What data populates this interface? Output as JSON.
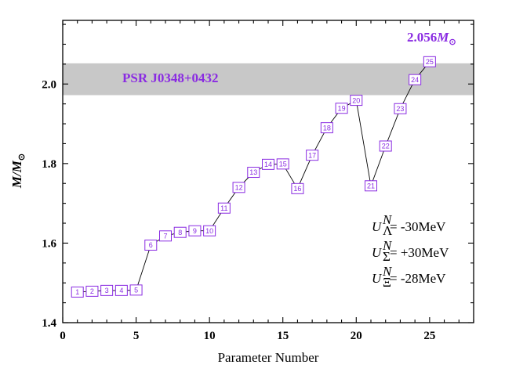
{
  "colors": {
    "band": "#c8c8c8",
    "accent": "#8a2be2",
    "line": "#000000"
  },
  "chart_data": {
    "type": "line",
    "title": "",
    "xlabel": "Parameter Number",
    "ylabel_main": "M/M",
    "ylabel_sub": "⊙",
    "xlim": [
      0,
      28
    ],
    "ylim": [
      1.4,
      2.16
    ],
    "xticks": [
      0,
      5,
      10,
      15,
      20,
      25
    ],
    "xtick_labels": [
      "0",
      "5",
      "10",
      "15",
      "20",
      "25"
    ],
    "yticks": [
      1.4,
      1.6,
      1.8,
      2.0
    ],
    "ytick_labels": [
      "1.4",
      "1.6",
      "1.8",
      "2.0"
    ],
    "band": {
      "y_min": 1.972,
      "y_max": 2.052,
      "label": "PSR J0348+0432"
    },
    "max_annotation": {
      "value": "2.056",
      "symbol": "M",
      "sub": "⊙"
    },
    "grid": false,
    "series": [
      {
        "x": [
          1,
          2,
          3,
          4,
          5,
          6,
          7,
          8,
          9,
          10,
          11,
          12,
          13,
          14,
          15,
          16,
          17,
          18,
          19,
          20,
          21,
          22,
          23,
          24,
          25
        ],
        "y": [
          1.477,
          1.479,
          1.481,
          1.481,
          1.482,
          1.595,
          1.618,
          1.627,
          1.631,
          1.631,
          1.688,
          1.74,
          1.778,
          1.798,
          1.799,
          1.737,
          1.821,
          1.89,
          1.939,
          1.959,
          1.744,
          1.844,
          1.938,
          2.011,
          2.056
        ],
        "labels": [
          "1",
          "2",
          "3",
          "4",
          "5",
          "6",
          "7",
          "8",
          "9",
          "10",
          "11",
          "12",
          "13",
          "14",
          "15",
          "16",
          "17",
          "18",
          "19",
          "20",
          "21",
          "22",
          "23",
          "24",
          "25"
        ]
      }
    ],
    "legend": [
      {
        "sym": "U",
        "sup": "N",
        "sub": "Λ",
        "value": "= -30MeV"
      },
      {
        "sym": "U",
        "sup": "N",
        "sub": "Σ",
        "value": "= +30MeV"
      },
      {
        "sym": "U",
        "sup": "N",
        "sub": "Ξ",
        "value": "= -28MeV"
      }
    ]
  }
}
